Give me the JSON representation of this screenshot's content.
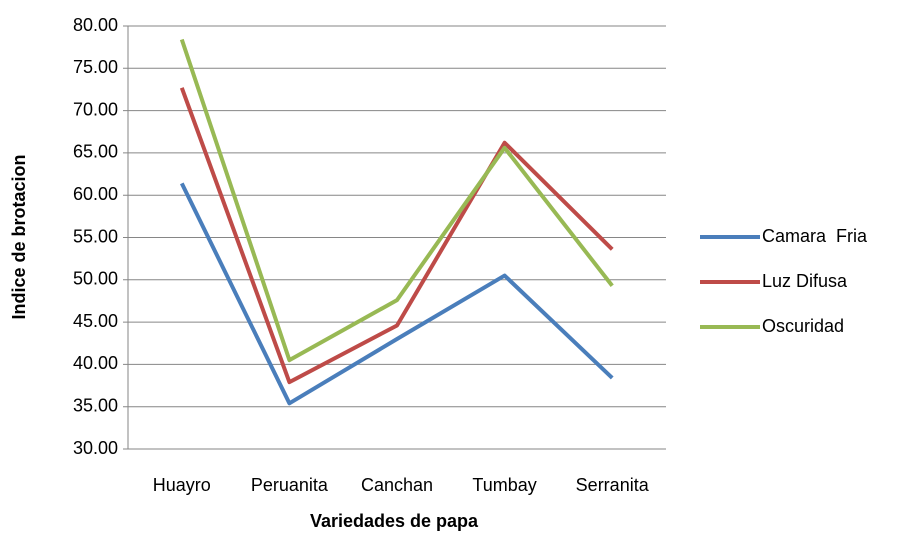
{
  "chart_data": {
    "type": "line",
    "categories": [
      "Huayro",
      "Peruanita",
      "Canchan",
      "Tumbay",
      "Serranita"
    ],
    "series": [
      {
        "name": "Camara  Fria",
        "color": "#4a7ebb",
        "values": [
          61.4,
          35.4,
          43.0,
          50.5,
          38.4
        ]
      },
      {
        "name": "Luz Difusa",
        "color": "#be4b48",
        "values": [
          72.7,
          37.9,
          44.6,
          66.2,
          53.6
        ]
      },
      {
        "name": "Oscuridad",
        "color": "#98b954",
        "values": [
          78.4,
          40.5,
          47.6,
          65.6,
          49.3
        ]
      }
    ],
    "x_label": "Variedades de papa",
    "y_label": "Indice de brotacion",
    "ylim": [
      30,
      80
    ],
    "yticks": [
      {
        "value": 30,
        "label": "30.00"
      },
      {
        "value": 35,
        "label": "35.00"
      },
      {
        "value": 40,
        "label": "40.00"
      },
      {
        "value": 45,
        "label": "45.00"
      },
      {
        "value": 50,
        "label": "50.00"
      },
      {
        "value": 55,
        "label": "55.00"
      },
      {
        "value": 60,
        "label": "60.00"
      },
      {
        "value": 65,
        "label": "65.00"
      },
      {
        "value": 70,
        "label": "70.00"
      },
      {
        "value": 75,
        "label": "75.00"
      },
      {
        "value": 80,
        "label": "80.00"
      }
    ],
    "grid": true,
    "legend": "right"
  }
}
